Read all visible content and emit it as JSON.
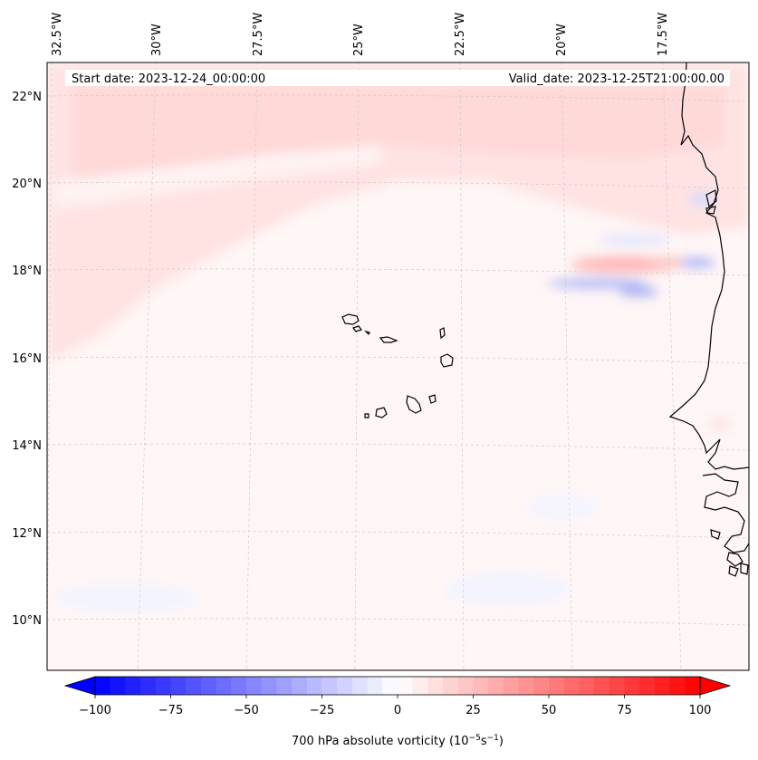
{
  "map": {
    "start_date_label": "Start date: 2023-12-24_00:00:00",
    "valid_date_label": "Valid_date: 2023-12-25T21:00:00.00",
    "longitude_labels": [
      "32.5°W",
      "30°W",
      "27.5°W",
      "25°W",
      "22.5°W",
      "20°W",
      "17.5°W"
    ],
    "latitude_labels": [
      "22°N",
      "20°N",
      "18°N",
      "16°N",
      "14°N",
      "12°N",
      "10°N"
    ],
    "gridlines": true,
    "colormap": "bwr"
  },
  "colorbar": {
    "ticks": [
      "−100",
      "−75",
      "−50",
      "−25",
      "0",
      "25",
      "50",
      "75",
      "100"
    ],
    "label": "700 hPa absolute vorticity (10",
    "label_exp1": "−5",
    "label_mid": "s",
    "label_exp2": "−1",
    "label_end": ")",
    "min": -100,
    "max": 100,
    "step": 5
  },
  "colors": {
    "negative": "#0000ff",
    "positive": "#ff0000",
    "coastline": "#000000",
    "gridline": "#cccccc"
  }
}
